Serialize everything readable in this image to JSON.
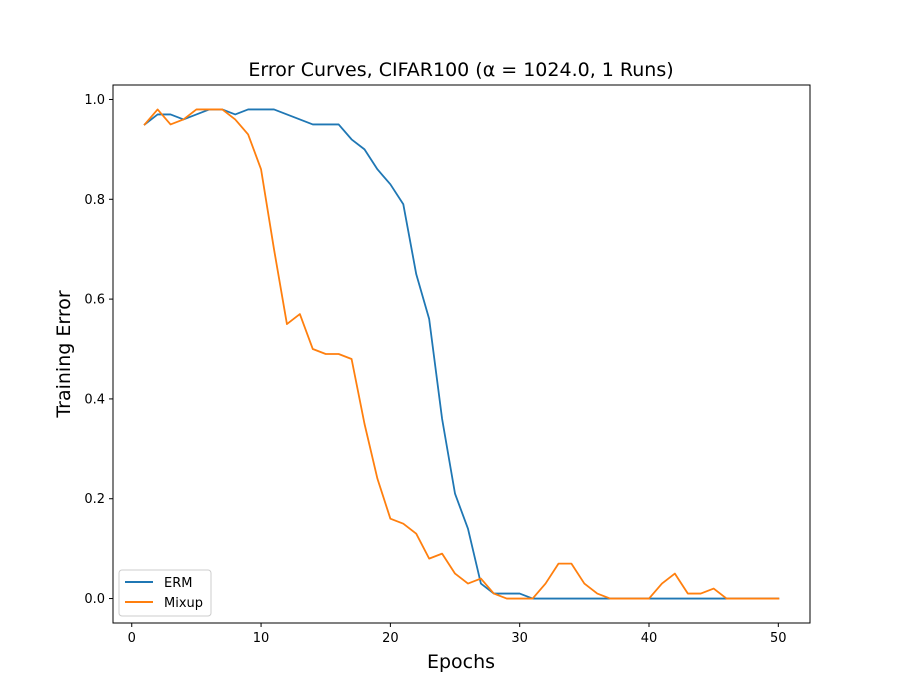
{
  "chart_data": {
    "type": "line",
    "title": "Error Curves, CIFAR100 (α = 1024.0, 1 Runs)",
    "xlabel": "Epochs",
    "ylabel": "Training Error",
    "xlim": [
      -1.45,
      52.45
    ],
    "ylim": [
      -0.049,
      1.029
    ],
    "xticks": [
      0,
      10,
      20,
      30,
      40,
      50
    ],
    "yticks": [
      0.0,
      0.2,
      0.4,
      0.6,
      0.8,
      1.0
    ],
    "xtick_labels": [
      "0",
      "10",
      "20",
      "30",
      "40",
      "50"
    ],
    "ytick_labels": [
      "0.0",
      "0.2",
      "0.4",
      "0.6",
      "0.8",
      "1.0"
    ],
    "grid": false,
    "legend_position": "bottom-left",
    "x": [
      1,
      2,
      3,
      4,
      5,
      6,
      7,
      8,
      9,
      10,
      11,
      12,
      13,
      14,
      15,
      16,
      17,
      18,
      19,
      20,
      21,
      22,
      23,
      24,
      25,
      26,
      27,
      28,
      29,
      30,
      31,
      32,
      33,
      34,
      35,
      36,
      37,
      38,
      39,
      40,
      41,
      42,
      43,
      44,
      45,
      46,
      47,
      48,
      49,
      50
    ],
    "series": [
      {
        "name": "ERM",
        "color": "#1f77b4",
        "values": [
          0.95,
          0.97,
          0.97,
          0.96,
          0.97,
          0.98,
          0.98,
          0.97,
          0.98,
          0.98,
          0.98,
          0.97,
          0.96,
          0.95,
          0.95,
          0.95,
          0.92,
          0.9,
          0.86,
          0.83,
          0.79,
          0.65,
          0.56,
          0.36,
          0.21,
          0.14,
          0.03,
          0.01,
          0.01,
          0.01,
          0.0,
          0.0,
          0.0,
          0.0,
          0.0,
          0.0,
          0.0,
          0.0,
          0.0,
          0.0,
          0.0,
          0.0,
          0.0,
          0.0,
          0.0,
          0.0,
          0.0,
          0.0,
          0.0,
          0.0
        ]
      },
      {
        "name": "Mixup",
        "color": "#ff7f0e",
        "values": [
          0.95,
          0.98,
          0.95,
          0.96,
          0.98,
          0.98,
          0.98,
          0.96,
          0.93,
          0.86,
          0.7,
          0.55,
          0.57,
          0.5,
          0.49,
          0.49,
          0.48,
          0.35,
          0.24,
          0.16,
          0.15,
          0.13,
          0.08,
          0.09,
          0.05,
          0.03,
          0.04,
          0.01,
          0.0,
          0.0,
          0.0,
          0.03,
          0.07,
          0.07,
          0.03,
          0.01,
          0.0,
          0.0,
          0.0,
          0.0,
          0.03,
          0.05,
          0.01,
          0.01,
          0.02,
          0.0,
          0.0,
          0.0,
          0.0,
          0.0
        ]
      }
    ]
  }
}
